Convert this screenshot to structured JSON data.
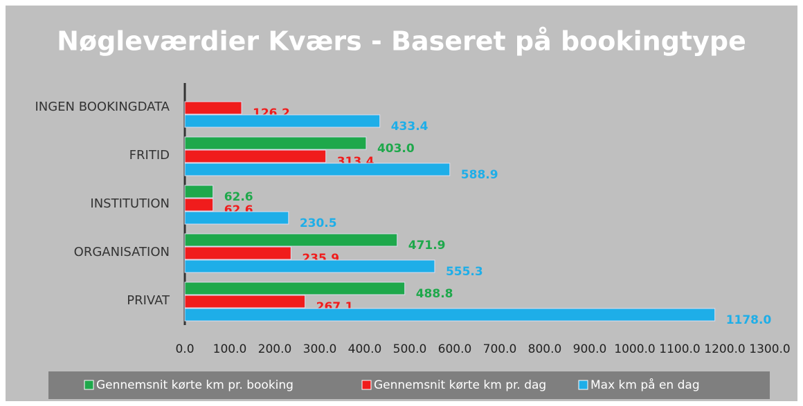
{
  "chart_data": {
    "type": "bar",
    "orientation": "horizontal",
    "title": "Nøgleværdier Kværs - Baseret på bookingtype",
    "categories": [
      "INGEN BOOKINGDATA",
      "FRITID",
      "INSTITUTION",
      "ORGANISATION",
      "PRIVAT"
    ],
    "series": [
      {
        "name": "Gennemsnit kørte km pr. booking",
        "color": "#1ea84b",
        "values": [
          null,
          403.0,
          62.6,
          471.9,
          488.8
        ],
        "value_labels": [
          null,
          "403.0",
          "62.6",
          "471.9",
          "488.8"
        ]
      },
      {
        "name": "Gennemsnit kørte km pr. dag",
        "color": "#f01c1c",
        "values": [
          126.2,
          313.4,
          62.6,
          235.9,
          267.1
        ],
        "value_labels": [
          "126.2",
          "313.4",
          "62.6",
          "235.9",
          "267.1"
        ]
      },
      {
        "name": "Max km på en dag",
        "color": "#1eaee8",
        "values": [
          433.4,
          588.9,
          230.5,
          555.3,
          1178.0
        ],
        "value_labels": [
          "433.4",
          "588.9",
          "230.5",
          "555.3",
          "1178.0"
        ]
      }
    ],
    "xlim": [
      0,
      1300
    ],
    "xticks": [
      {
        "value": 0,
        "label": "0.0"
      },
      {
        "value": 100,
        "label": "100.0"
      },
      {
        "value": 200,
        "label": "200.0"
      },
      {
        "value": 300,
        "label": "300.0"
      },
      {
        "value": 400,
        "label": "400.0"
      },
      {
        "value": 500,
        "label": "500.0"
      },
      {
        "value": 600,
        "label": "600.0"
      },
      {
        "value": 700,
        "label": "700.0"
      },
      {
        "value": 800,
        "label": "800.0"
      },
      {
        "value": 900,
        "label": "900.0"
      },
      {
        "value": 1000,
        "label": "1000.0"
      },
      {
        "value": 1100,
        "label": "1100.0"
      },
      {
        "value": 1200,
        "label": "1200.0"
      },
      {
        "value": 1300,
        "label": "1300.0"
      }
    ],
    "grid": true,
    "legend": "bottom"
  }
}
